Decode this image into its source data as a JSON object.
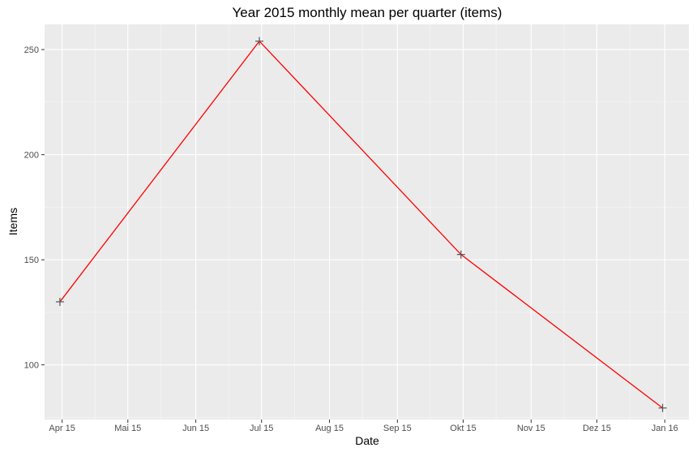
{
  "chart_data": {
    "type": "line",
    "title": "Year 2015 monthly mean per quarter (items)",
    "xlabel": "Date",
    "ylabel": "Items",
    "x_ticks": [
      "Apr 15",
      "Mai 15",
      "Jun 15",
      "Jul 15",
      "Aug 15",
      "Sep 15",
      "Okt 15",
      "Nov 15",
      "Dez 15",
      "Jan 16"
    ],
    "y_ticks": [
      100,
      150,
      200,
      250
    ],
    "ylim": [
      74,
      262
    ],
    "xlim": [
      "2015-03-24",
      "2016-01-12"
    ],
    "grid": true,
    "legend": "none",
    "series": [
      {
        "color": "#ff0000",
        "marker": "plus",
        "marker_color": "#555555",
        "points": [
          {
            "x": "2015-03-31",
            "y": 130
          },
          {
            "x": "2015-06-30",
            "y": 254
          },
          {
            "x": "2015-09-30",
            "y": 152.5
          },
          {
            "x": "2015-12-31",
            "y": 79.5
          }
        ]
      }
    ],
    "background": "#ebebeb",
    "gridline_color": "#ffffff"
  }
}
